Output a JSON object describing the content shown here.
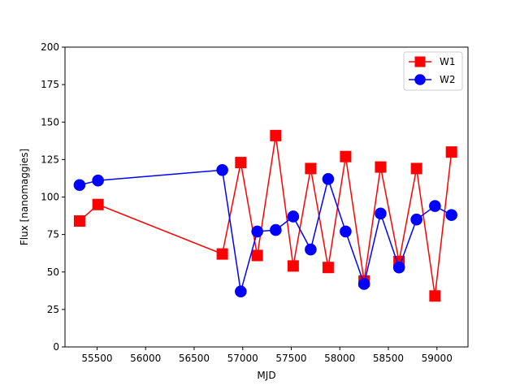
{
  "chart_data": {
    "type": "line",
    "title": "",
    "xlabel": "MJD",
    "ylabel": "Flux [nanomaggies]",
    "xlim": [
      55170,
      59320
    ],
    "ylim": [
      0,
      200
    ],
    "xticks": [
      55500,
      56000,
      56500,
      57000,
      57500,
      58000,
      58500,
      59000
    ],
    "yticks": [
      0,
      25,
      50,
      75,
      100,
      125,
      150,
      175,
      200
    ],
    "grid": false,
    "legend_position": "top-right",
    "series": [
      {
        "name": "W1",
        "color": "#ff0000",
        "marker": "square",
        "x": [
          55320,
          55510,
          56790,
          56980,
          57150,
          57340,
          57520,
          57700,
          57880,
          58060,
          58250,
          58420,
          58610,
          58790,
          58980,
          59150
        ],
        "y": [
          84,
          95,
          62,
          123,
          61,
          141,
          54,
          119,
          53,
          127,
          44,
          120,
          57,
          119,
          34,
          130
        ]
      },
      {
        "name": "W2",
        "color": "#0000ff",
        "marker": "circle",
        "x": [
          55320,
          55510,
          56790,
          56980,
          57150,
          57340,
          57520,
          57700,
          57880,
          58060,
          58250,
          58420,
          58610,
          58790,
          58980,
          59150
        ],
        "y": [
          108,
          111,
          118,
          37,
          77,
          78,
          87,
          65,
          112,
          77,
          42,
          89,
          53,
          85,
          94,
          88
        ]
      }
    ]
  }
}
